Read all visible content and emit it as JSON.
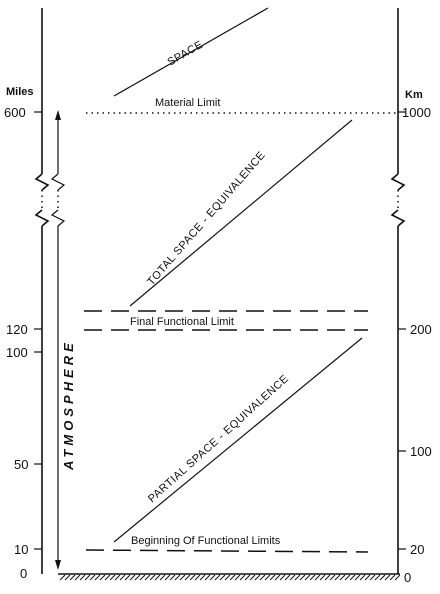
{
  "units": {
    "left": "Miles",
    "right": "Km"
  },
  "left_ticks": [
    "600",
    "120",
    "100",
    "50",
    "10",
    "0"
  ],
  "right_ticks": [
    "1000",
    "200",
    "100",
    "20",
    "0"
  ],
  "zones": {
    "space": "SPACE",
    "total": "TOTAL SPACE - EQUIVALENCE",
    "partial": "PARTIAL SPACE - EQUIVALENCE"
  },
  "limits": {
    "material": "Material  Limit",
    "final": "Final Functional Limit",
    "beginning": "Beginning Of Functional Limits"
  },
  "atmosphere": "ATMOSPHERE"
}
